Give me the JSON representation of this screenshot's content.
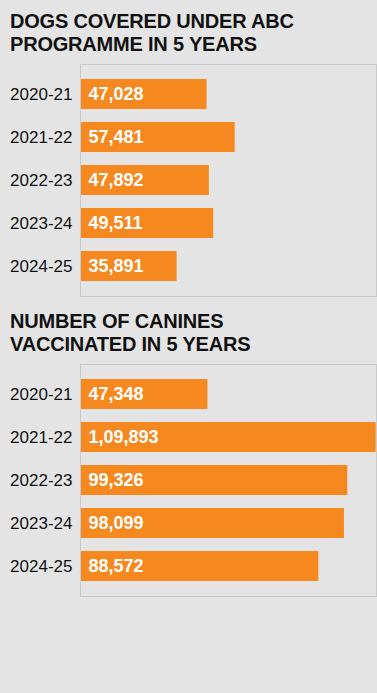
{
  "chart_data": [
    {
      "type": "bar",
      "title": "DOGS COVERED UNDER ABC PROGRAMME IN 5 YEARS",
      "orientation": "horizontal",
      "categories": [
        "2020-21",
        "2021-22",
        "2022-23",
        "2023-24",
        "2024-25"
      ],
      "values": [
        47028,
        57481,
        47892,
        49511,
        35891
      ],
      "value_labels": [
        "47,028",
        "57,481",
        "47,892",
        "49,511",
        "35,891"
      ],
      "color": "#f5891f",
      "xlim": [
        0,
        110000
      ],
      "data_labels": true,
      "tick_labels": "y",
      "grid": false
    },
    {
      "type": "bar",
      "title": "NUMBER OF CANINES VACCINATED IN 5 YEARS",
      "orientation": "horizontal",
      "categories": [
        "2020-21",
        "2021-22",
        "2022-23",
        "2023-24",
        "2024-25"
      ],
      "values": [
        47348,
        109893,
        99326,
        98099,
        88572
      ],
      "value_labels": [
        "47,348",
        "1,09,893",
        "99,326",
        "98,099",
        "88,572"
      ],
      "color": "#f5891f",
      "xlim": [
        0,
        110000
      ],
      "data_labels": true,
      "tick_labels": "y",
      "grid": false
    }
  ]
}
